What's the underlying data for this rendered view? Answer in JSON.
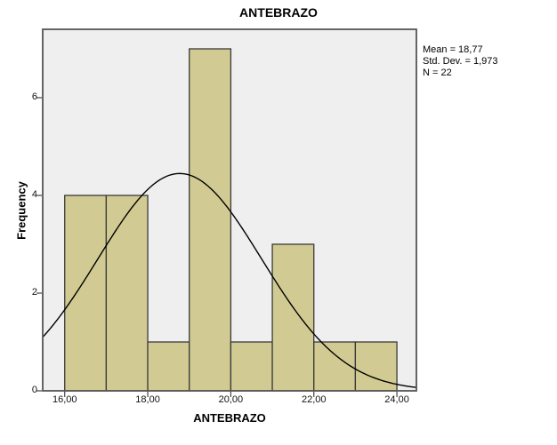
{
  "chart_data": {
    "type": "bar",
    "subtype": "histogram",
    "title": "ANTEBRAZO",
    "xlabel": "ANTEBRAZO",
    "ylabel": "Frequency",
    "bin_width": 1,
    "bin_edges": [
      16,
      17,
      18,
      19,
      20,
      21,
      22,
      23,
      24
    ],
    "frequencies": [
      4,
      4,
      1,
      7,
      1,
      3,
      1,
      1
    ],
    "x_ticks": [
      {
        "value": 16,
        "label": "16,00"
      },
      {
        "value": 18,
        "label": "18,00"
      },
      {
        "value": 20,
        "label": "20,00"
      },
      {
        "value": 22,
        "label": "22,00"
      },
      {
        "value": 24,
        "label": "24,00"
      }
    ],
    "y_ticks": [
      {
        "value": 0,
        "label": "0"
      },
      {
        "value": 2,
        "label": "2"
      },
      {
        "value": 4,
        "label": "4"
      },
      {
        "value": 6,
        "label": "6"
      }
    ],
    "xlim": [
      15.47,
      24.47
    ],
    "ylim": [
      0,
      7.4
    ],
    "grid": false,
    "normal_curve": {
      "mean": 18.77,
      "std_dev": 1.973,
      "n": 22
    },
    "stats": {
      "mean": "Mean = 18,77",
      "std_dev": "Std. Dev. = 1,973",
      "n": "N = 22"
    },
    "colors": {
      "bar_fill": "#d1cb93",
      "bar_border": "#3a3a3a",
      "plot_bg": "#efefef",
      "curve": "#000000",
      "frame": "#555555",
      "tick": "#444444"
    }
  }
}
